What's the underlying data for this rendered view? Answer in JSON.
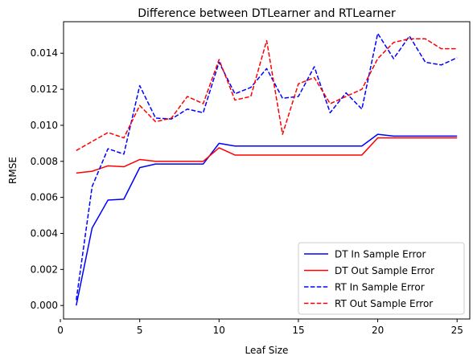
{
  "chart_data": {
    "type": "line",
    "title": "Difference between DTLearner and RTLearner",
    "xlabel": "Leaf Size",
    "ylabel": "RMSE",
    "xlim": [
      0.2,
      25.8
    ],
    "ylim": [
      -0.00075,
      0.01575
    ],
    "xticks": [
      0,
      5,
      10,
      15,
      20,
      25
    ],
    "xtick_labels": [
      "0",
      "5",
      "10",
      "15",
      "20",
      "25"
    ],
    "yticks": [
      0.0,
      0.002,
      0.004,
      0.006,
      0.008,
      0.01,
      0.012,
      0.014
    ],
    "ytick_labels": [
      "0.000",
      "0.002",
      "0.004",
      "0.006",
      "0.008",
      "0.010",
      "0.012",
      "0.014"
    ],
    "grid": false,
    "legend_position": "bottom-right",
    "x": [
      1,
      2,
      3,
      4,
      5,
      6,
      7,
      8,
      9,
      10,
      11,
      12,
      13,
      14,
      15,
      16,
      17,
      18,
      19,
      20,
      21,
      22,
      23,
      24,
      25
    ],
    "series": [
      {
        "name": "DT In Sample Error",
        "color": "#0000ff",
        "style": "solid",
        "values": [
          0.0,
          0.0043,
          0.00585,
          0.0059,
          0.00765,
          0.00785,
          0.00785,
          0.00785,
          0.00785,
          0.009,
          0.00885,
          0.00885,
          0.00885,
          0.00885,
          0.00885,
          0.00885,
          0.00885,
          0.00885,
          0.00885,
          0.0095,
          0.0094,
          0.0094,
          0.0094,
          0.0094,
          0.0094
        ]
      },
      {
        "name": "DT Out Sample Error",
        "color": "#ff0000",
        "style": "solid",
        "values": [
          0.00735,
          0.00745,
          0.00775,
          0.0077,
          0.0081,
          0.008,
          0.008,
          0.008,
          0.008,
          0.00875,
          0.00835,
          0.00835,
          0.00835,
          0.00835,
          0.00835,
          0.00835,
          0.00835,
          0.00835,
          0.00835,
          0.0093,
          0.0093,
          0.0093,
          0.0093,
          0.0093,
          0.0093
        ]
      },
      {
        "name": "RT In Sample Error",
        "color": "#0000ff",
        "style": "dashed",
        "values": [
          0.0003,
          0.0066,
          0.0087,
          0.0084,
          0.0122,
          0.0104,
          0.01035,
          0.0109,
          0.0107,
          0.0135,
          0.01175,
          0.0121,
          0.01315,
          0.0115,
          0.0116,
          0.01325,
          0.0107,
          0.0118,
          0.0109,
          0.0151,
          0.0137,
          0.01495,
          0.0135,
          0.01335,
          0.01375
        ]
      },
      {
        "name": "RT Out Sample Error",
        "color": "#ff0000",
        "style": "dashed",
        "values": [
          0.0086,
          0.0091,
          0.0096,
          0.0093,
          0.0111,
          0.0102,
          0.0104,
          0.0116,
          0.0112,
          0.01365,
          0.0114,
          0.0116,
          0.0147,
          0.0095,
          0.0123,
          0.01265,
          0.0112,
          0.0116,
          0.012,
          0.0137,
          0.0146,
          0.0148,
          0.0148,
          0.01425,
          0.01425
        ]
      }
    ]
  }
}
